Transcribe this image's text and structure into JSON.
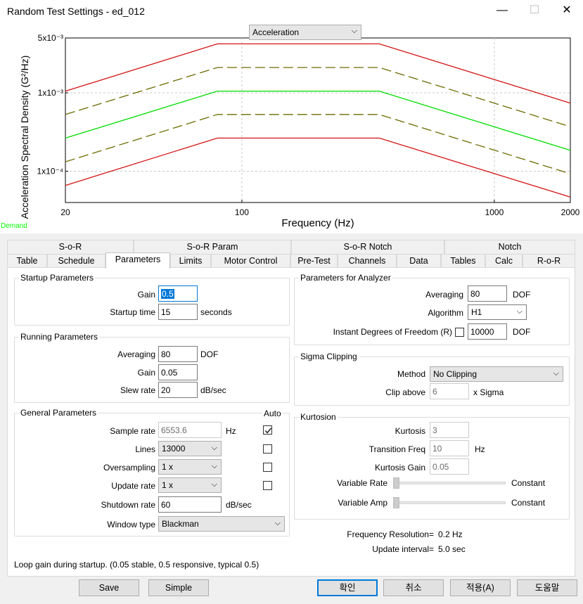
{
  "window": {
    "title": "Random Test Settings - ed_012",
    "minimize_label": "—",
    "maximize_label": "☐",
    "close_label": "✕"
  },
  "chart_selector": {
    "value": "Acceleration"
  },
  "chart_data": {
    "type": "line",
    "x_scale": "log",
    "y_scale": "log",
    "xlabel": "Frequency (Hz)",
    "ylabel": "Acceleration Spectral Density (G²/Hz)",
    "xlim": [
      20,
      2000
    ],
    "ylim": [
      4e-05,
      0.005
    ],
    "x_ticks": [
      20,
      100,
      1000,
      2000
    ],
    "x_tick_labels": [
      "20",
      "100",
      "1000",
      "2000"
    ],
    "y_tick_labels": [
      "5x10⁻³",
      "1x10⁻³",
      "1x10⁻⁴"
    ],
    "y_ticks": [
      0.005,
      0.001,
      0.0001
    ],
    "grid": true,
    "legend": [
      "Demand"
    ],
    "legend_color": "#00ff00",
    "series": [
      {
        "role": "abort-high",
        "color": "#d21414",
        "dash": "solid",
        "x": [
          20,
          80,
          350,
          2000
        ],
        "y": [
          0.00105,
          0.0042,
          0.0042,
          0.00074
        ]
      },
      {
        "role": "alarm-high",
        "color": "#6b6b00",
        "dash": "dashed",
        "x": [
          20,
          80,
          350,
          2000
        ],
        "y": [
          0.00053,
          0.0021,
          0.0021,
          0.00037
        ]
      },
      {
        "name": "Demand",
        "color": "#00dd00",
        "dash": "solid",
        "x": [
          20,
          80,
          350,
          2000
        ],
        "y": [
          0.000265,
          0.00105,
          0.00105,
          0.000185
        ]
      },
      {
        "role": "alarm-low",
        "color": "#6b6b00",
        "dash": "dashed",
        "x": [
          20,
          80,
          350,
          2000
        ],
        "y": [
          0.000132,
          0.00053,
          0.00053,
          9.3e-05
        ]
      },
      {
        "role": "abort-low",
        "color": "#d21414",
        "dash": "solid",
        "x": [
          20,
          80,
          350,
          2000
        ],
        "y": [
          6.6e-05,
          0.000265,
          0.000265,
          4.7e-05
        ]
      }
    ]
  },
  "tabs": {
    "row1": [
      "S-o-R",
      "S-o-R Param",
      "S-o-R Notch",
      "Notch"
    ],
    "row2": [
      "Table",
      "Schedule",
      "Parameters",
      "Limits",
      "Motor Control",
      "Pre-Test",
      "Channels",
      "Data",
      "Tables",
      "Calc",
      "R-o-R"
    ],
    "active": "Parameters"
  },
  "startup": {
    "title": "Startup Parameters",
    "gain_label": "Gain",
    "gain_value": "0.5",
    "time_label": "Startup time",
    "time_value": "15",
    "time_unit": "seconds"
  },
  "running": {
    "title": "Running Parameters",
    "averaging_label": "Averaging",
    "averaging_value": "80",
    "averaging_unit": "DOF",
    "gain_label": "Gain",
    "gain_value": "0.05",
    "slew_label": "Slew rate",
    "slew_value": "20",
    "slew_unit": "dB/sec"
  },
  "general": {
    "title": "General Parameters",
    "auto_label": "Auto",
    "sample_rate_label": "Sample rate",
    "sample_rate_value": "6553.6",
    "sample_rate_unit": "Hz",
    "sample_rate_auto": true,
    "lines_label": "Lines",
    "lines_value": "13000",
    "lines_auto": false,
    "oversampling_label": "Oversampling",
    "oversampling_value": "1 x",
    "oversampling_auto": false,
    "update_rate_label": "Update rate",
    "update_rate_value": "1 x",
    "update_rate_auto": false,
    "shutdown_label": "Shutdown rate",
    "shutdown_value": "60",
    "shutdown_unit": "dB/sec",
    "window_label": "Window type",
    "window_value": "Blackman"
  },
  "analyzer": {
    "title": "Parameters for Analyzer",
    "averaging_label": "Averaging",
    "averaging_value": "80",
    "averaging_unit": "DOF",
    "algorithm_label": "Algorithm",
    "algorithm_value": "H1",
    "idof_label": "Instant Degrees of Freedom (R)",
    "idof_checked": false,
    "idof_value": "10000",
    "idof_unit": "DOF"
  },
  "sigma": {
    "title": "Sigma Clipping",
    "method_label": "Method",
    "method_value": "No Clipping",
    "clip_label": "Clip above",
    "clip_value": "6",
    "clip_unit": "x Sigma"
  },
  "kurtosis": {
    "title": "Kurtosion",
    "kurtosis_label": "Kurtosis",
    "kurtosis_value": "3",
    "transition_label": "Transition Freq",
    "transition_value": "10",
    "transition_unit": "Hz",
    "gain_label": "Kurtosis Gain",
    "gain_value": "0.05",
    "variable_rate_label": "Variable Rate",
    "variable_rate_value": "Constant",
    "variable_amp_label": "Variable Amp",
    "variable_amp_value": "Constant"
  },
  "info": {
    "freq_res_label": "Frequency Resolution=",
    "freq_res_value": "0.2 Hz",
    "update_interval_label": "Update interval=",
    "update_interval_value": "5.0 sec"
  },
  "hint": "Loop gain during startup. (0.05 stable, 0.5 responsive, typical 0.5)",
  "buttons": {
    "save": "Save",
    "simple": "Simple",
    "ok": "확인",
    "cancel": "취소",
    "apply": "적용(A)",
    "help": "도움말"
  }
}
